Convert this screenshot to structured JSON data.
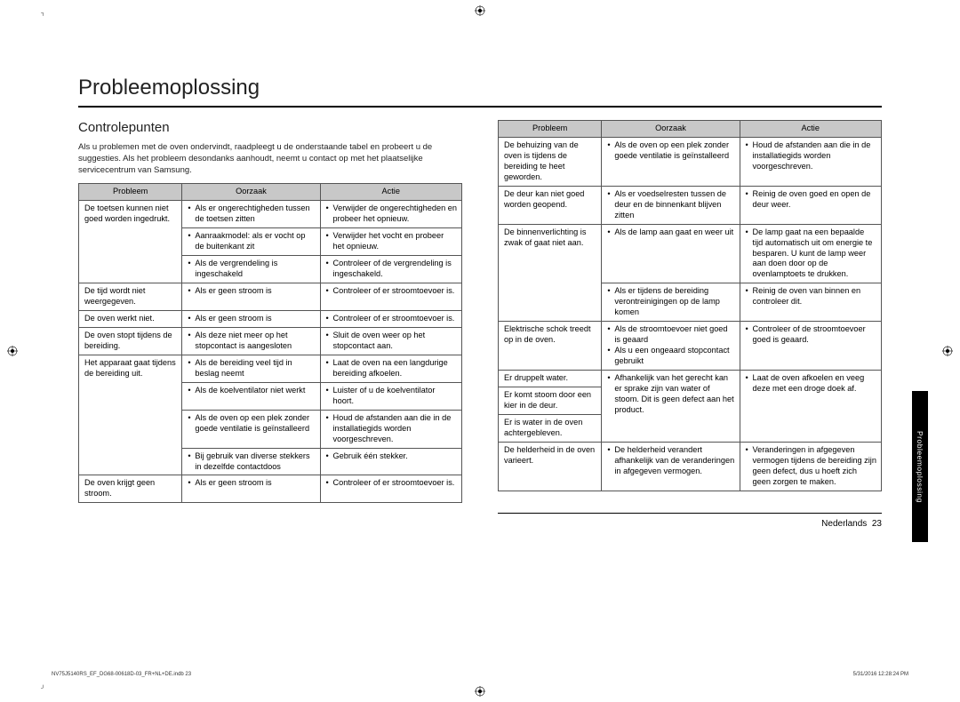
{
  "page_title": "Probleemoplossing",
  "section_title": "Controlepunten",
  "intro": "Als u problemen met de oven ondervindt, raadpleegt u de onderstaande tabel en probeert u de suggesties. Als het probleem desondanks aanhoudt, neemt u contact op met het plaatselijke servicecentrum van Samsung.",
  "headers": {
    "problem": "Probleem",
    "cause": "Oorzaak",
    "action": "Actie"
  },
  "table1": [
    {
      "problem": "De toetsen kunnen niet goed worden ingedrukt.",
      "rows": [
        {
          "cause": "Als er ongerechtigheden tussen de toetsen zitten",
          "action": "Verwijder de ongerechtigheden en probeer het opnieuw."
        },
        {
          "cause": "Aanraakmodel: als er vocht op de buitenkant zit",
          "action": "Verwijder het vocht en probeer het opnieuw."
        },
        {
          "cause": "Als de vergrendeling is ingeschakeld",
          "action": "Controleer of de vergrendeling is ingeschakeld."
        }
      ]
    },
    {
      "problem": "De tijd wordt niet weergegeven.",
      "rows": [
        {
          "cause": "Als er geen stroom is",
          "action": "Controleer of er stroomtoevoer is."
        }
      ]
    },
    {
      "problem": "De oven werkt niet.",
      "rows": [
        {
          "cause": "Als er geen stroom is",
          "action": "Controleer of er stroomtoevoer is."
        }
      ]
    },
    {
      "problem": "De oven stopt tijdens de bereiding.",
      "rows": [
        {
          "cause": "Als deze niet meer op het stopcontact is aangesloten",
          "action": "Sluit de oven weer op het stopcontact aan."
        }
      ]
    },
    {
      "problem": "Het apparaat gaat tijdens de bereiding uit.",
      "rows": [
        {
          "cause": "Als de bereiding veel tijd in beslag neemt",
          "action": "Laat de oven na een langdurige bereiding afkoelen."
        },
        {
          "cause": "Als de koelventilator niet werkt",
          "action": "Luister of u de koelventilator hoort."
        },
        {
          "cause": "Als de oven op een plek zonder goede ventilatie is geïnstalleerd",
          "action": "Houd de afstanden aan die in de installatiegids worden voorgeschreven."
        },
        {
          "cause": "Bij gebruik van diverse stekkers in dezelfde contactdoos",
          "action": "Gebruik één stekker."
        }
      ]
    },
    {
      "problem": "De oven krijgt geen stroom.",
      "rows": [
        {
          "cause": "Als er geen stroom is",
          "action": "Controleer of er stroomtoevoer is."
        }
      ]
    }
  ],
  "table2": [
    {
      "problem": "De behuizing van de oven is tijdens de bereiding te heet geworden.",
      "rows": [
        {
          "cause": "Als de oven op een plek zonder goede ventilatie is geïnstalleerd",
          "action": "Houd de afstanden aan die in de installatiegids worden voorgeschreven."
        }
      ]
    },
    {
      "problem": "De deur kan niet goed worden geopend.",
      "rows": [
        {
          "cause": "Als er voedselresten tussen de deur en de binnenkant blijven zitten",
          "action": "Reinig de oven goed en open de deur weer."
        }
      ]
    },
    {
      "problem": "De binnenverlichting is zwak of gaat niet aan.",
      "rows": [
        {
          "cause": "Als de lamp aan gaat en weer uit",
          "action": "De lamp gaat na een bepaalde tijd automatisch uit om energie te besparen. U kunt de lamp weer aan doen door op de ovenlamptoets te drukken."
        },
        {
          "cause": "Als er tijdens de bereiding verontreinigingen op de lamp komen",
          "action": "Reinig de oven van binnen en controleer dit."
        }
      ]
    },
    {
      "problem": "Elektrische schok treedt op in de oven.",
      "rows": [
        {
          "cause": "Als de stroomtoevoer niet goed is geaard\nAls u een ongeaard stopcontact gebruikt",
          "action": "Controleer of de stroomtoevoer goed is geaard."
        }
      ]
    },
    {
      "problem": "Er druppelt water.",
      "rows": [
        {
          "cause": "Afhankelijk van het gerecht kan er sprake zijn van water of stoom. Dit is geen defect aan het product.",
          "action": "Laat de oven afkoelen en veeg deze met een droge doek af."
        }
      ],
      "merged_problems": [
        "Er komt stoom door een kier in de deur.",
        "Er is water in de oven achtergebleven."
      ]
    },
    {
      "problem": "De helderheid in de oven varieert.",
      "rows": [
        {
          "cause": "De helderheid verandert afhankelijk van de veranderingen in afgegeven vermogen.",
          "action": "Veranderingen in afgegeven vermogen tijdens de bereiding zijn geen defect, dus u hoeft zich geen zorgen te maken."
        }
      ]
    }
  ],
  "footer": {
    "language": "Nederlands",
    "page_number": "23"
  },
  "side_tab": "Probleemoplossing",
  "print_footer_left": "NV75J5140RS_EF_DG68-00618D-03_FR+NL+DE.indb   23",
  "print_footer_right": "5/31/2016   12:28:24 PM"
}
